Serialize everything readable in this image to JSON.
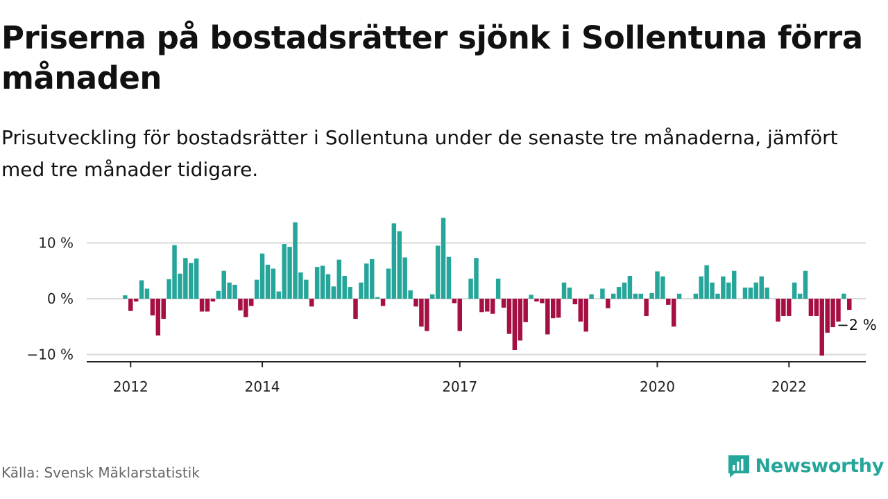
{
  "header": {
    "title": "Priserna på bostadsrätter sjönk i Sollentuna förra månaden",
    "subtitle": "Prisutveckling för bostadsrätter i Sollentuna under de senaste tre månaderna, jämfört med tre månader tidigare."
  },
  "footer": {
    "source": "Källa: Svensk Mäklarstatistik",
    "brand": "Newsworthy"
  },
  "colors": {
    "positive": "#26a69a",
    "negative": "#a50f44",
    "grid": "#d9d9d9",
    "axis": "#222222",
    "brand": "#26a69a"
  },
  "icons": {
    "brand_logo": "bar-chart-speech-bubble-icon"
  },
  "chart_data": {
    "type": "bar",
    "title": "",
    "xlabel": "",
    "ylabel": "",
    "ylim": [
      -11,
      16
    ],
    "y_ticks": [
      {
        "value": 10,
        "label": "10 %"
      },
      {
        "value": 0,
        "label": "0 %"
      },
      {
        "value": -10,
        "label": "−10 %"
      }
    ],
    "x_ticks": [
      {
        "date": "2012-01",
        "label": "2012"
      },
      {
        "date": "2014-01",
        "label": "2014"
      },
      {
        "date": "2017-01",
        "label": "2017"
      },
      {
        "date": "2020-01",
        "label": "2020"
      },
      {
        "date": "2022-01",
        "label": "2022"
      }
    ],
    "x_range": [
      "2011-05",
      "2023-03"
    ],
    "annotation": {
      "date": "2023-02",
      "text": "−2 %"
    },
    "grid": "horizontal",
    "series": [
      {
        "values": [
          {
            "date": "2011-12",
            "value": 0.6
          },
          {
            "date": "2012-01",
            "value": -2.2
          },
          {
            "date": "2012-02",
            "value": -0.5
          },
          {
            "date": "2012-03",
            "value": 3.3
          },
          {
            "date": "2012-04",
            "value": 1.8
          },
          {
            "date": "2012-05",
            "value": -3.0
          },
          {
            "date": "2012-06",
            "value": -6.6
          },
          {
            "date": "2012-07",
            "value": -3.6
          },
          {
            "date": "2012-08",
            "value": 3.5
          },
          {
            "date": "2012-09",
            "value": 9.6
          },
          {
            "date": "2012-10",
            "value": 4.5
          },
          {
            "date": "2012-11",
            "value": 7.3
          },
          {
            "date": "2012-12",
            "value": 6.4
          },
          {
            "date": "2013-01",
            "value": 7.2
          },
          {
            "date": "2013-02",
            "value": -2.3
          },
          {
            "date": "2013-03",
            "value": -2.3
          },
          {
            "date": "2013-04",
            "value": -0.5
          },
          {
            "date": "2013-05",
            "value": 1.4
          },
          {
            "date": "2013-06",
            "value": 5.0
          },
          {
            "date": "2013-07",
            "value": 2.9
          },
          {
            "date": "2013-08",
            "value": 2.5
          },
          {
            "date": "2013-09",
            "value": -2.1
          },
          {
            "date": "2013-10",
            "value": -3.3
          },
          {
            "date": "2013-11",
            "value": -1.3
          },
          {
            "date": "2013-12",
            "value": 3.4
          },
          {
            "date": "2014-01",
            "value": 8.1
          },
          {
            "date": "2014-02",
            "value": 6.1
          },
          {
            "date": "2014-03",
            "value": 5.4
          },
          {
            "date": "2014-04",
            "value": 1.3
          },
          {
            "date": "2014-05",
            "value": 9.8
          },
          {
            "date": "2014-06",
            "value": 9.3
          },
          {
            "date": "2014-07",
            "value": 13.7
          },
          {
            "date": "2014-08",
            "value": 4.7
          },
          {
            "date": "2014-09",
            "value": 3.4
          },
          {
            "date": "2014-10",
            "value": -1.4
          },
          {
            "date": "2014-11",
            "value": 5.7
          },
          {
            "date": "2014-12",
            "value": 5.9
          },
          {
            "date": "2015-01",
            "value": 4.4
          },
          {
            "date": "2015-02",
            "value": 2.2
          },
          {
            "date": "2015-03",
            "value": 7.0
          },
          {
            "date": "2015-04",
            "value": 4.1
          },
          {
            "date": "2015-05",
            "value": 2.1
          },
          {
            "date": "2015-06",
            "value": -3.6
          },
          {
            "date": "2015-07",
            "value": 2.9
          },
          {
            "date": "2015-08",
            "value": 6.3
          },
          {
            "date": "2015-09",
            "value": 7.1
          },
          {
            "date": "2015-10",
            "value": 0.3
          },
          {
            "date": "2015-11",
            "value": -1.3
          },
          {
            "date": "2015-12",
            "value": 5.4
          },
          {
            "date": "2016-01",
            "value": 13.5
          },
          {
            "date": "2016-02",
            "value": 12.1
          },
          {
            "date": "2016-03",
            "value": 7.4
          },
          {
            "date": "2016-04",
            "value": 1.5
          },
          {
            "date": "2016-05",
            "value": -1.4
          },
          {
            "date": "2016-06",
            "value": -5.0
          },
          {
            "date": "2016-07",
            "value": -5.8
          },
          {
            "date": "2016-08",
            "value": 0.8
          },
          {
            "date": "2016-09",
            "value": 9.5
          },
          {
            "date": "2016-10",
            "value": 14.5
          },
          {
            "date": "2016-11",
            "value": 7.5
          },
          {
            "date": "2016-12",
            "value": -0.8
          },
          {
            "date": "2017-01",
            "value": -5.8
          },
          {
            "date": "2017-03",
            "value": 3.6
          },
          {
            "date": "2017-04",
            "value": 7.3
          },
          {
            "date": "2017-05",
            "value": -2.4
          },
          {
            "date": "2017-06",
            "value": -2.3
          },
          {
            "date": "2017-07",
            "value": -2.7
          },
          {
            "date": "2017-08",
            "value": 3.6
          },
          {
            "date": "2017-09",
            "value": -1.6
          },
          {
            "date": "2017-10",
            "value": -6.3
          },
          {
            "date": "2017-11",
            "value": -9.2
          },
          {
            "date": "2017-12",
            "value": -7.5
          },
          {
            "date": "2018-01",
            "value": -4.2
          },
          {
            "date": "2018-02",
            "value": 0.7
          },
          {
            "date": "2018-03",
            "value": -0.5
          },
          {
            "date": "2018-04",
            "value": -0.8
          },
          {
            "date": "2018-05",
            "value": -6.4
          },
          {
            "date": "2018-06",
            "value": -3.5
          },
          {
            "date": "2018-07",
            "value": -3.4
          },
          {
            "date": "2018-08",
            "value": 2.9
          },
          {
            "date": "2018-09",
            "value": 2.0
          },
          {
            "date": "2018-10",
            "value": -1.0
          },
          {
            "date": "2018-11",
            "value": -4.1
          },
          {
            "date": "2018-12",
            "value": -5.9
          },
          {
            "date": "2019-01",
            "value": 0.8
          },
          {
            "date": "2019-03",
            "value": 1.8
          },
          {
            "date": "2019-04",
            "value": -1.7
          },
          {
            "date": "2019-05",
            "value": 0.9
          },
          {
            "date": "2019-06",
            "value": 2.1
          },
          {
            "date": "2019-07",
            "value": 2.9
          },
          {
            "date": "2019-08",
            "value": 4.1
          },
          {
            "date": "2019-09",
            "value": 0.9
          },
          {
            "date": "2019-10",
            "value": 0.9
          },
          {
            "date": "2019-11",
            "value": -3.1
          },
          {
            "date": "2019-12",
            "value": 1.0
          },
          {
            "date": "2020-01",
            "value": 4.9
          },
          {
            "date": "2020-02",
            "value": 4.0
          },
          {
            "date": "2020-03",
            "value": -1.1
          },
          {
            "date": "2020-04",
            "value": -5.0
          },
          {
            "date": "2020-05",
            "value": 0.9
          },
          {
            "date": "2020-08",
            "value": 0.9
          },
          {
            "date": "2020-09",
            "value": 4.0
          },
          {
            "date": "2020-10",
            "value": 6.0
          },
          {
            "date": "2020-11",
            "value": 2.9
          },
          {
            "date": "2020-12",
            "value": 0.9
          },
          {
            "date": "2021-01",
            "value": 4.0
          },
          {
            "date": "2021-02",
            "value": 2.9
          },
          {
            "date": "2021-03",
            "value": 5.0
          },
          {
            "date": "2021-05",
            "value": 2.0
          },
          {
            "date": "2021-06",
            "value": 2.0
          },
          {
            "date": "2021-07",
            "value": 2.9
          },
          {
            "date": "2021-08",
            "value": 4.0
          },
          {
            "date": "2021-09",
            "value": 2.0
          },
          {
            "date": "2021-11",
            "value": -4.1
          },
          {
            "date": "2021-12",
            "value": -3.1
          },
          {
            "date": "2022-01",
            "value": -3.1
          },
          {
            "date": "2022-02",
            "value": 2.9
          },
          {
            "date": "2022-03",
            "value": 0.9
          },
          {
            "date": "2022-04",
            "value": 5.0
          },
          {
            "date": "2022-05",
            "value": -3.1
          },
          {
            "date": "2022-06",
            "value": -3.1
          },
          {
            "date": "2022-07",
            "value": -10.2
          },
          {
            "date": "2022-08",
            "value": -6.1
          },
          {
            "date": "2022-09",
            "value": -5.1
          },
          {
            "date": "2022-10",
            "value": -4.1
          },
          {
            "date": "2022-11",
            "value": 0.9
          },
          {
            "date": "2022-12",
            "value": -2.0
          }
        ]
      }
    ]
  }
}
